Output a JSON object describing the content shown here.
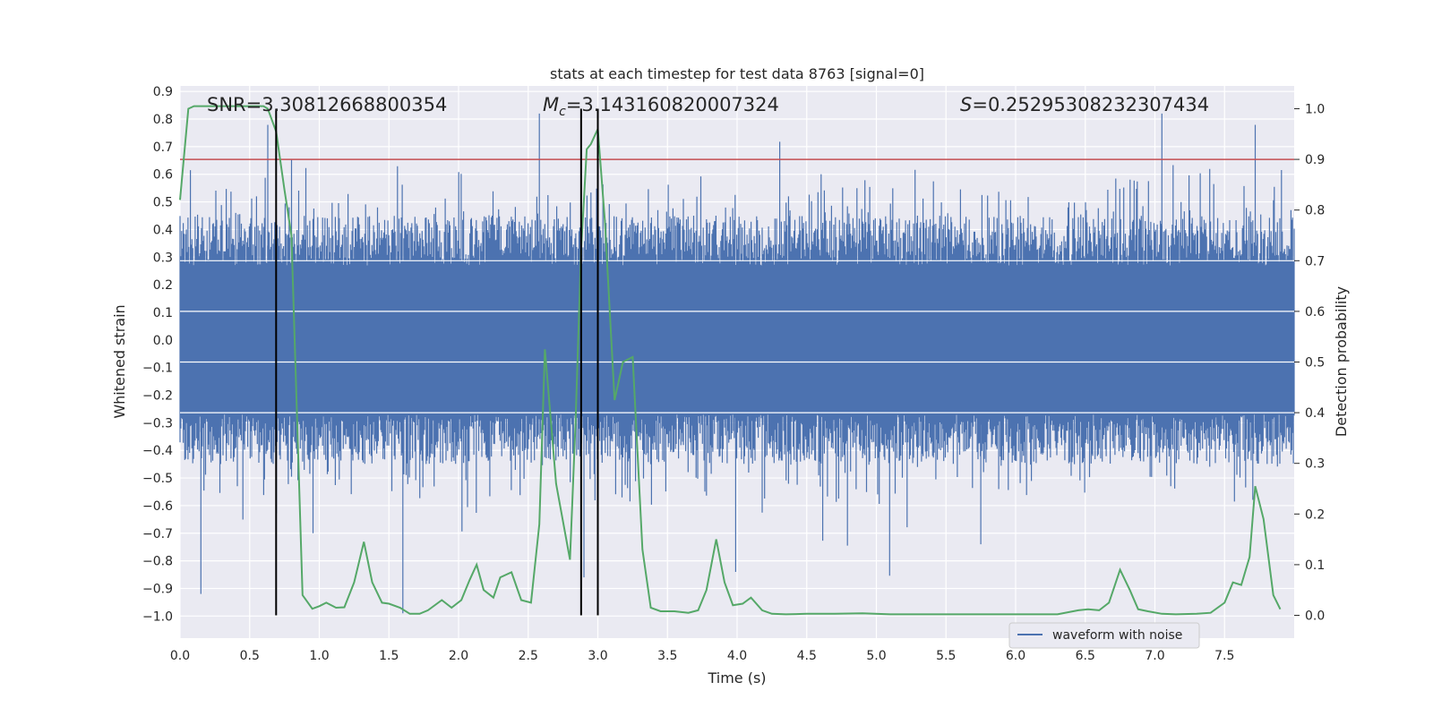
{
  "chart_data": {
    "type": "line",
    "title": "stats at each timestep for test data 8763 [signal=0]",
    "xlabel": "Time (s)",
    "ylabel_left": "Whitened strain",
    "ylabel_right": "Detection probability",
    "xlim": [
      0.0,
      8.0
    ],
    "ylim_left": [
      -1.08,
      0.92
    ],
    "ylim_right": [
      -0.045,
      1.045
    ],
    "x_ticks": [
      "0.0",
      "0.5",
      "1.0",
      "1.5",
      "2.0",
      "2.5",
      "3.0",
      "3.5",
      "4.0",
      "4.5",
      "5.0",
      "5.5",
      "6.0",
      "6.5",
      "7.0",
      "7.5"
    ],
    "y_left_ticks": [
      "0.9",
      "0.8",
      "0.7",
      "0.6",
      "0.5",
      "0.4",
      "0.3",
      "0.2",
      "0.1",
      "0.0",
      "−0.1",
      "−0.2",
      "−0.3",
      "−0.4",
      "−0.5",
      "−0.6",
      "−0.7",
      "−0.8",
      "−0.9",
      "−1.0"
    ],
    "y_right_ticks": [
      "1.0",
      "0.9",
      "0.8",
      "0.7",
      "0.6",
      "0.5",
      "0.4",
      "0.3",
      "0.2",
      "0.1",
      "0.0"
    ],
    "annotations": {
      "snr": "SNR=3.30812668800354",
      "mc_prefix": "M",
      "mc_sub": "c",
      "mc_value": "=3.143160820007324",
      "s_prefix": "S",
      "s_value": "=0.25295308232307434"
    },
    "threshold_probability": 0.9,
    "vertical_lines_x": [
      0.69,
      2.88,
      3.0
    ],
    "legend": [
      {
        "label": "waveform with noise",
        "color": "#4c72b0"
      }
    ],
    "series": [
      {
        "name": "waveform with noise",
        "color": "#4c72b0",
        "axis": "left",
        "description": "dense noise strain, bulk within about ±0.27, spikes to 0.82 and -0.99",
        "core_amplitude": 0.27,
        "max": 0.82,
        "min": -0.99
      },
      {
        "name": "detection probability",
        "color": "#55a868",
        "axis": "right",
        "x": [
          0.0,
          0.06,
          0.1,
          0.2,
          0.3,
          0.4,
          0.5,
          0.6,
          0.63,
          0.69,
          0.75,
          0.8,
          0.88,
          0.95,
          1.0,
          1.05,
          1.12,
          1.18,
          1.25,
          1.32,
          1.38,
          1.45,
          1.5,
          1.58,
          1.65,
          1.72,
          1.78,
          1.88,
          1.95,
          2.02,
          2.08,
          2.13,
          2.18,
          2.25,
          2.3,
          2.38,
          2.45,
          2.52,
          2.58,
          2.62,
          2.7,
          2.8,
          2.84,
          2.88,
          2.92,
          2.95,
          3.0,
          3.05,
          3.12,
          3.18,
          3.25,
          3.32,
          3.38,
          3.45,
          3.55,
          3.65,
          3.72,
          3.78,
          3.85,
          3.91,
          3.97,
          4.04,
          4.1,
          4.18,
          4.25,
          4.35,
          4.5,
          4.7,
          4.9,
          5.1,
          5.3,
          5.5,
          5.7,
          5.9,
          6.1,
          6.3,
          6.45,
          6.52,
          6.6,
          6.67,
          6.75,
          6.82,
          6.88,
          6.95,
          7.05,
          7.15,
          7.3,
          7.4,
          7.5,
          7.56,
          7.62,
          7.68,
          7.72,
          7.78,
          7.85,
          7.9
        ],
        "values": [
          0.82,
          1.0,
          1.005,
          1.005,
          1.005,
          1.005,
          1.005,
          1.005,
          1.0,
          0.955,
          0.84,
          0.75,
          0.04,
          0.013,
          0.018,
          0.025,
          0.015,
          0.016,
          0.065,
          0.145,
          0.065,
          0.025,
          0.023,
          0.015,
          0.003,
          0.003,
          0.01,
          0.03,
          0.015,
          0.03,
          0.07,
          0.1,
          0.05,
          0.035,
          0.075,
          0.085,
          0.03,
          0.025,
          0.18,
          0.525,
          0.26,
          0.11,
          0.38,
          0.72,
          0.92,
          0.93,
          0.96,
          0.78,
          0.425,
          0.5,
          0.51,
          0.13,
          0.015,
          0.008,
          0.008,
          0.005,
          0.01,
          0.05,
          0.15,
          0.065,
          0.02,
          0.023,
          0.035,
          0.01,
          0.003,
          0.002,
          0.003,
          0.003,
          0.004,
          0.002,
          0.002,
          0.002,
          0.002,
          0.002,
          0.002,
          0.002,
          0.01,
          0.012,
          0.01,
          0.025,
          0.09,
          0.05,
          0.012,
          0.008,
          0.003,
          0.002,
          0.003,
          0.005,
          0.025,
          0.065,
          0.06,
          0.115,
          0.255,
          0.19,
          0.04,
          0.012
        ]
      }
    ]
  }
}
